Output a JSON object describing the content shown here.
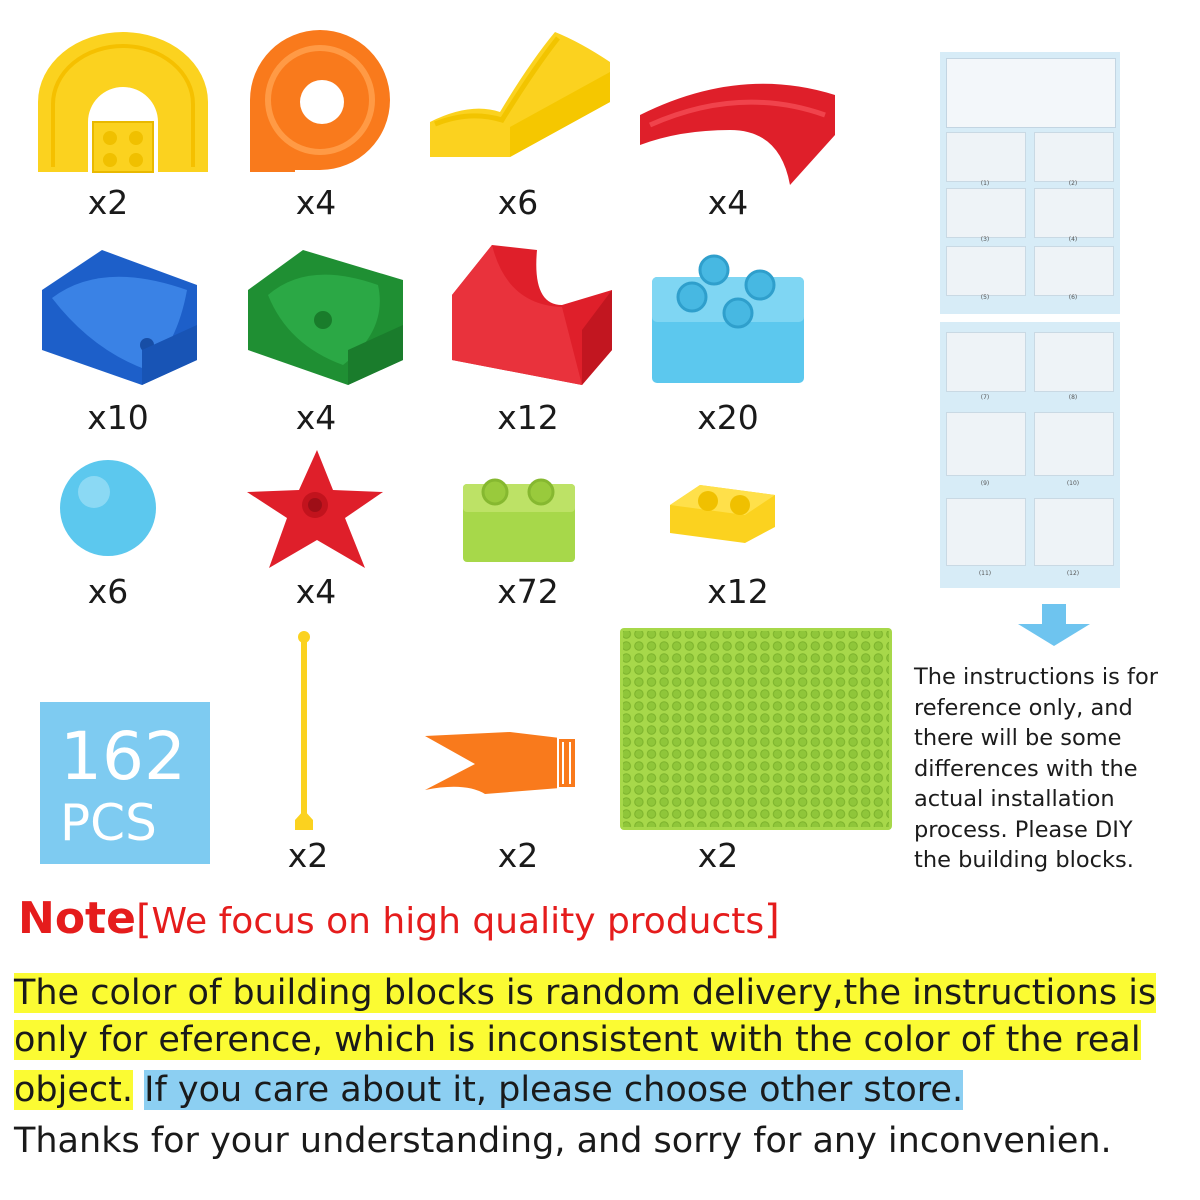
{
  "parts": [
    {
      "name": "yellow-arch-track",
      "qty": "x2"
    },
    {
      "name": "orange-spiral-track",
      "qty": "x4"
    },
    {
      "name": "yellow-slide-track",
      "qty": "x6"
    },
    {
      "name": "red-curve-track",
      "qty": "x4"
    },
    {
      "name": "blue-funnel-block",
      "qty": "x10"
    },
    {
      "name": "green-funnel-block",
      "qty": "x4"
    },
    {
      "name": "red-channel-block",
      "qty": "x12"
    },
    {
      "name": "blue-2x2-brick",
      "qty": "x20"
    },
    {
      "name": "blue-ball",
      "qty": "x6"
    },
    {
      "name": "red-flower-piece",
      "qty": "x4"
    },
    {
      "name": "green-1x2-brick",
      "qty": "x72"
    },
    {
      "name": "yellow-1x2-flat-brick",
      "qty": "x12"
    },
    {
      "name": "yellow-pole",
      "qty": "x2"
    },
    {
      "name": "orange-lever",
      "qty": "x2"
    },
    {
      "name": "green-base-plate",
      "qty": "x2"
    }
  ],
  "badge": {
    "count": "162",
    "unit": "PCS"
  },
  "instructions_note": "The instructions  is for reference only, and there will be some differences with the actual installation process. Please DIY the building blocks.",
  "note": {
    "label": "Note",
    "bracket_open": "[",
    "headline": "We focus on high quality products",
    "bracket_close": "]",
    "line1": "The color of building blocks is random delivery,the instructions is",
    "line2": "only for eference, which is inconsistent with the color of the real",
    "line3a": "object.",
    "line3b": "If you care about it, please choose other store.",
    "line4": "Thanks for your understanding, and sorry for any inconvenien."
  },
  "manual_pages": {
    "top_captions": [
      "(1)",
      "(2)",
      "(3)",
      "(4)",
      "(5)",
      "(6)"
    ],
    "bottom_captions": [
      "(7)",
      "(8)",
      "(9)",
      "(10)",
      "(11)",
      "(12)"
    ]
  },
  "colors": {
    "yellow": "#fbd21f",
    "orange": "#f97a1c",
    "red": "#df1f2a",
    "blue": "#1d5fc9",
    "green": "#1f8f33",
    "lightblue": "#5cc8ee",
    "lime": "#a7d84a",
    "note_red": "#e51c1c"
  }
}
